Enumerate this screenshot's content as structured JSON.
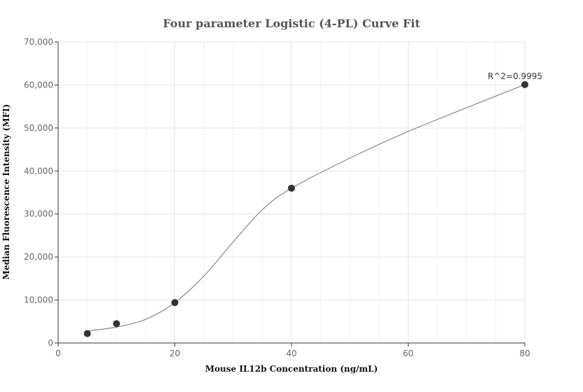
{
  "chart_data": {
    "type": "scatter",
    "title": "Four parameter Logistic (4-PL) Curve Fit",
    "xlabel": "Mouse IL12b Concentration (ng/mL)",
    "ylabel": "Median Fluorescence Intensity (MFI)",
    "xlim": [
      0,
      80
    ],
    "ylim": [
      0,
      70000
    ],
    "x_ticks": [
      0,
      20,
      40,
      60,
      80
    ],
    "x_tick_labels": [
      "0",
      "20",
      "40",
      "60",
      "80"
    ],
    "y_ticks": [
      0,
      10000,
      20000,
      30000,
      40000,
      50000,
      60000,
      70000
    ],
    "y_tick_labels": [
      "0",
      "10,000",
      "20,000",
      "30,000",
      "40,000",
      "50,000",
      "60,000",
      "70,000"
    ],
    "grid": true,
    "series": [
      {
        "points": [
          {
            "x": 5,
            "y": 2200
          },
          {
            "x": 10,
            "y": 4500
          },
          {
            "x": 20,
            "y": 9400
          },
          {
            "x": 40,
            "y": 36000
          },
          {
            "x": 80,
            "y": 60100
          }
        ]
      }
    ],
    "fit_curve": {
      "points": [
        {
          "x": 5,
          "y": 2800
        },
        {
          "x": 10,
          "y": 3700
        },
        {
          "x": 15,
          "y": 5500
        },
        {
          "x": 20,
          "y": 9400
        },
        {
          "x": 25,
          "y": 15600
        },
        {
          "x": 30,
          "y": 23500
        },
        {
          "x": 35,
          "y": 31000
        },
        {
          "x": 40,
          "y": 36000
        },
        {
          "x": 50,
          "y": 43000
        },
        {
          "x": 60,
          "y": 49200
        },
        {
          "x": 70,
          "y": 54700
        },
        {
          "x": 80,
          "y": 60100
        }
      ],
      "color": "#888888"
    },
    "annotation": {
      "text": "R^2=0.9995",
      "x": 80,
      "y": 60100
    },
    "point_color": "#333333"
  }
}
